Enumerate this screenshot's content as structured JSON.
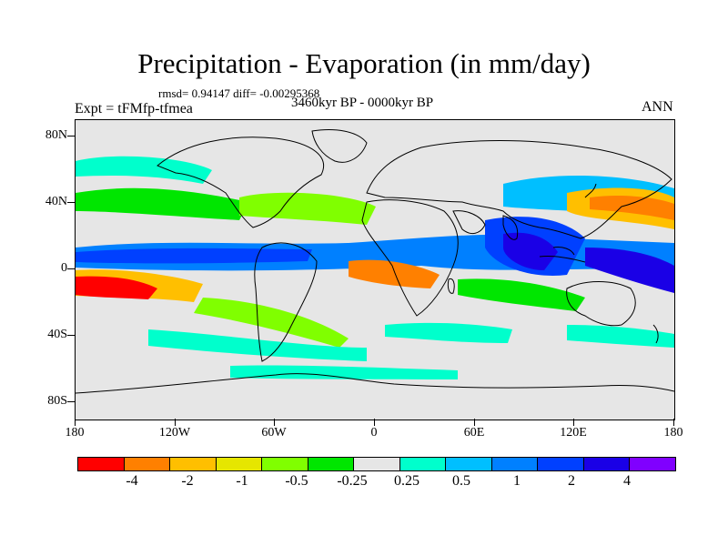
{
  "title": "Precipitation - Evaporation (in mm/day)",
  "stats": "rmsd= 0.94147 diff= -0.00295368",
  "experiment": "Expt = tFMfp-tfmea",
  "period": "3460kyr BP - 0000kyr BP",
  "season": "ANN",
  "y_axis_labels": [
    "80N",
    "40N",
    "0",
    "40S",
    "80S"
  ],
  "x_axis_labels": [
    "180",
    "120W",
    "60W",
    "0",
    "60E",
    "120E",
    "180"
  ],
  "colorbar": {
    "colors": [
      "#ff0000",
      "#ff8000",
      "#ffbf00",
      "#e6e600",
      "#80ff00",
      "#00e600",
      "#e6e6e6",
      "#00ffcc",
      "#00bfff",
      "#0080ff",
      "#0040ff",
      "#1a00e6",
      "#8000ff"
    ],
    "labels": [
      "-4",
      "-2",
      "-1",
      "-0.5",
      "-0.25",
      "0.25",
      "0.5",
      "1",
      "2",
      "4"
    ]
  }
}
